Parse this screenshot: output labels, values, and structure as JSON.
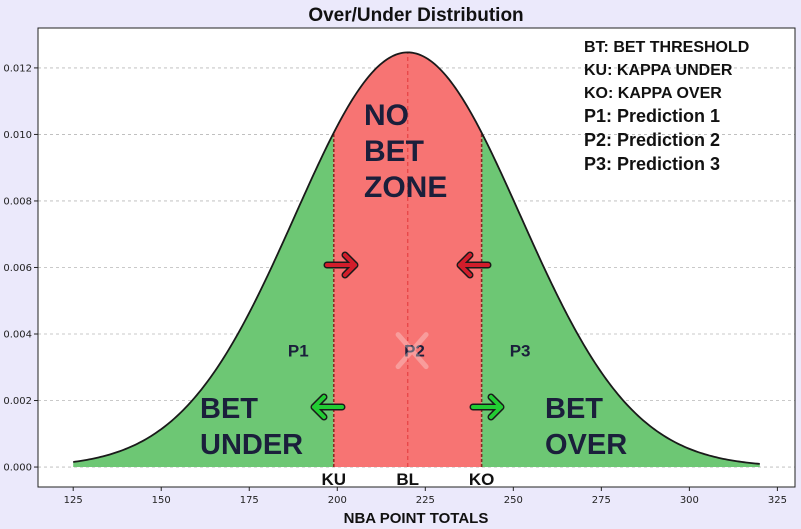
{
  "chart_data": {
    "type": "area",
    "title": "Over/Under Distribution",
    "xlabel": "NBA POINT TOTALS",
    "ylabel": "",
    "xlim": [
      115,
      330
    ],
    "ylim": [
      -0.0006,
      0.0132
    ],
    "x_ticks": [
      125,
      150,
      175,
      200,
      225,
      250,
      275,
      300,
      325
    ],
    "y_ticks": [
      0.0,
      0.002,
      0.004,
      0.006,
      0.008,
      0.01,
      0.012
    ],
    "y_tick_labels": [
      "0.000",
      "0.002",
      "0.004",
      "0.006",
      "0.008",
      "0.010",
      "0.012"
    ],
    "grid": true,
    "series": [
      {
        "mean": 220,
        "std": 32,
        "x_range": [
          125,
          320
        ]
      }
    ],
    "markers": [
      {
        "label": "KU",
        "x": 199
      },
      {
        "label": "BL",
        "x": 220
      },
      {
        "label": "KO",
        "x": 241
      }
    ],
    "regions": [
      {
        "label_lines": [
          "BET",
          "UNDER"
        ],
        "from": 125,
        "to": 199,
        "color": "#6dc774"
      },
      {
        "label_lines": [
          "NO",
          "BET",
          "ZONE"
        ],
        "from": 199,
        "to": 241,
        "color": "#f77473"
      },
      {
        "label_lines": [
          "BET",
          "OVER"
        ],
        "from": 241,
        "to": 320,
        "color": "#6dc774"
      }
    ],
    "predictions": [
      {
        "label": "P1",
        "x": 182,
        "y": 0.0035
      },
      {
        "label": "P2",
        "x": 215,
        "y": 0.0035
      },
      {
        "label": "P3",
        "x": 245,
        "y": 0.0035
      }
    ],
    "legend_position": "top-right",
    "legend": [
      "BT: BET THRESHOLD",
      "KU: KAPPA UNDER",
      "KO: KAPPA OVER",
      "P1: Prediction 1",
      "P2: Prediction 2",
      "P3: Prediction 3"
    ],
    "colors": {
      "green": "#6dc774",
      "red": "#f77473",
      "curve": "#1a1a1a",
      "bl_line": "#e8484a",
      "arrow_red": "#d21d2b",
      "arrow_green": "#22cc33",
      "background": "#ebe9fb"
    }
  }
}
